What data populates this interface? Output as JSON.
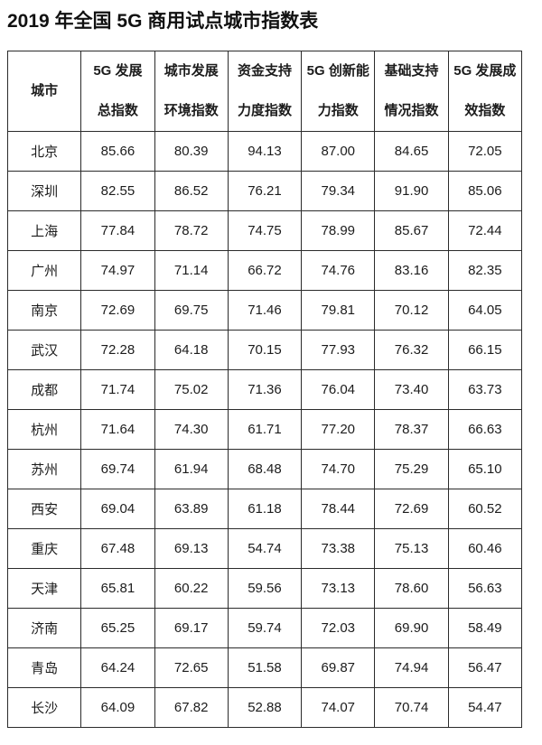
{
  "title": "2019 年全国 5G 商用试点城市指数表",
  "colors": {
    "background": "#ffffff",
    "text": "#1c1c1c",
    "border": "#2b2b2b"
  },
  "table": {
    "columns": [
      {
        "line1": "城市",
        "line2": ""
      },
      {
        "line1": "5G 发展",
        "line2": "总指数"
      },
      {
        "line1": "城市发展",
        "line2": "环境指数"
      },
      {
        "line1": "资金支持",
        "line2": "力度指数"
      },
      {
        "line1": "5G 创新能",
        "line2": "力指数"
      },
      {
        "line1": "基础支持",
        "line2": "情况指数"
      },
      {
        "line1": "5G 发展成",
        "line2": "效指数"
      }
    ],
    "rows": [
      {
        "city": "北京",
        "values": [
          "85.66",
          "80.39",
          "94.13",
          "87.00",
          "84.65",
          "72.05"
        ]
      },
      {
        "city": "深圳",
        "values": [
          "82.55",
          "86.52",
          "76.21",
          "79.34",
          "91.90",
          "85.06"
        ]
      },
      {
        "city": "上海",
        "values": [
          "77.84",
          "78.72",
          "74.75",
          "78.99",
          "85.67",
          "72.44"
        ]
      },
      {
        "city": "广州",
        "values": [
          "74.97",
          "71.14",
          "66.72",
          "74.76",
          "83.16",
          "82.35"
        ]
      },
      {
        "city": "南京",
        "values": [
          "72.69",
          "69.75",
          "71.46",
          "79.81",
          "70.12",
          "64.05"
        ]
      },
      {
        "city": "武汉",
        "values": [
          "72.28",
          "64.18",
          "70.15",
          "77.93",
          "76.32",
          "66.15"
        ]
      },
      {
        "city": "成都",
        "values": [
          "71.74",
          "75.02",
          "71.36",
          "76.04",
          "73.40",
          "63.73"
        ]
      },
      {
        "city": "杭州",
        "values": [
          "71.64",
          "74.30",
          "61.71",
          "77.20",
          "78.37",
          "66.63"
        ]
      },
      {
        "city": "苏州",
        "values": [
          "69.74",
          "61.94",
          "68.48",
          "74.70",
          "75.29",
          "65.10"
        ]
      },
      {
        "city": "西安",
        "values": [
          "69.04",
          "63.89",
          "61.18",
          "78.44",
          "72.69",
          "60.52"
        ]
      },
      {
        "city": "重庆",
        "values": [
          "67.48",
          "69.13",
          "54.74",
          "73.38",
          "75.13",
          "60.46"
        ]
      },
      {
        "city": "天津",
        "values": [
          "65.81",
          "60.22",
          "59.56",
          "73.13",
          "78.60",
          "56.63"
        ]
      },
      {
        "city": "济南",
        "values": [
          "65.25",
          "69.17",
          "59.74",
          "72.03",
          "69.90",
          "58.49"
        ]
      },
      {
        "city": "青岛",
        "values": [
          "64.24",
          "72.65",
          "51.58",
          "69.87",
          "74.94",
          "56.47"
        ]
      },
      {
        "city": "长沙",
        "values": [
          "64.09",
          "67.82",
          "52.88",
          "74.07",
          "70.74",
          "54.47"
        ]
      }
    ]
  }
}
